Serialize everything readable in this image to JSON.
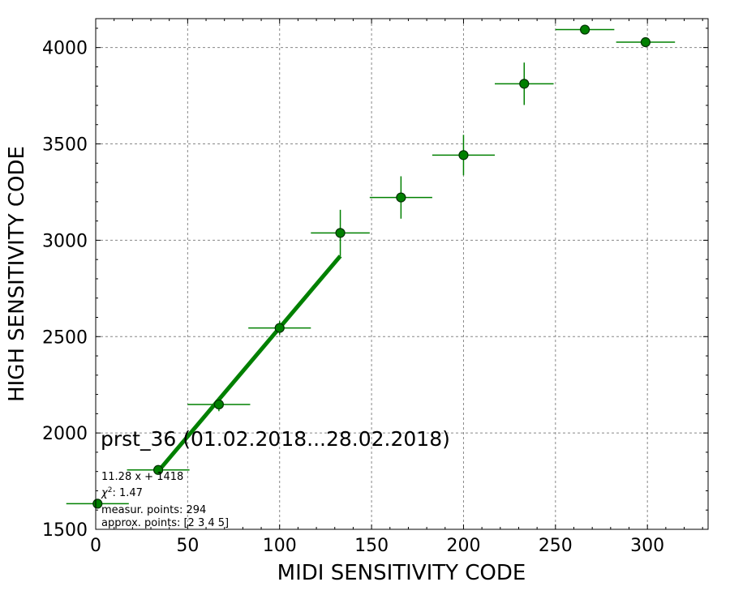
{
  "chart_data": {
    "type": "scatter",
    "xlabel": "MIDI SENSITIVITY CODE",
    "ylabel": "HIGH SENSITIVITY CODE",
    "xlim": [
      0,
      333
    ],
    "ylim": [
      1500,
      4150
    ],
    "x_ticks": [
      0,
      50,
      100,
      150,
      200,
      250,
      300
    ],
    "y_ticks": [
      1500,
      2000,
      2500,
      3000,
      3500,
      4000
    ],
    "grid": true,
    "annotation_title": "prst_36 (01.02.2018...28.02.2018)",
    "fit_label": "11.28 x + 1418",
    "chi2_label": "1.47",
    "chi2_prefix": "χ",
    "chi2_sup": "2",
    "measur_label": "measur. points: 294",
    "approx_label": "approx. points: [2 3 4 5]",
    "fit_line": {
      "slope": 11.28,
      "intercept": 1418,
      "x_range": [
        34,
        133
      ]
    },
    "points": [
      {
        "x": 1,
        "y": 1633,
        "xerr": 17,
        "yerr": 0
      },
      {
        "x": 34,
        "y": 1808,
        "xerr": 17,
        "yerr": 0
      },
      {
        "x": 67,
        "y": 2148,
        "xerr": 17,
        "yerr": 35
      },
      {
        "x": 100,
        "y": 2545,
        "xerr": 17,
        "yerr": 35
      },
      {
        "x": 133,
        "y": 3038,
        "xerr": 16,
        "yerr": 120
      },
      {
        "x": 166,
        "y": 3222,
        "xerr": 17,
        "yerr": 110
      },
      {
        "x": 200,
        "y": 3442,
        "xerr": 17,
        "yerr": 105
      },
      {
        "x": 233,
        "y": 3812,
        "xerr": 16,
        "yerr": 110
      },
      {
        "x": 266,
        "y": 4093,
        "xerr": 16,
        "yerr": 0
      },
      {
        "x": 299,
        "y": 4028,
        "xerr": 16,
        "yerr": 0
      }
    ],
    "colors": {
      "marker": "#008000",
      "marker_edge": "#003000",
      "line": "#008000",
      "grid": "#888888"
    }
  }
}
